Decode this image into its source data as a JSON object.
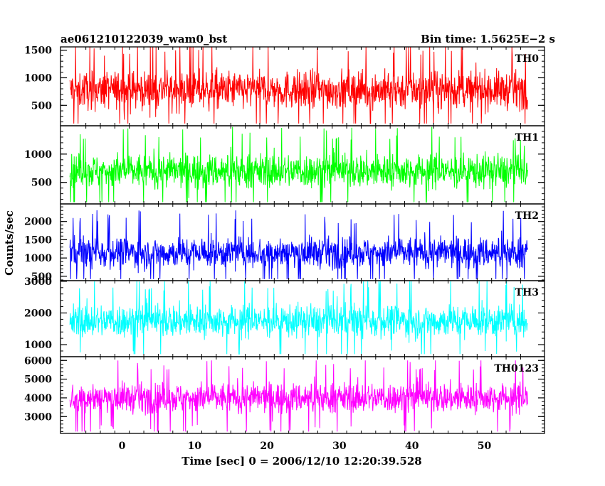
{
  "header": {
    "left_title": "ae061210122039_wam0_bst",
    "right_title": "Bin time: 1.5625E−2 s"
  },
  "chart_data": {
    "type": "line",
    "title": "ae061210122039_wam0_bst",
    "xlabel": "Time [sec] 0 = 2006/12/10 12:20:39.528",
    "ylabel": "Counts/sec",
    "xlim": [
      -8.5,
      58.3
    ],
    "x_ticks": [
      0,
      10,
      20,
      30,
      40,
      50
    ],
    "x_tick_labels": [
      "0",
      "10",
      "20",
      "30",
      "40",
      "50"
    ],
    "grid": false,
    "panels": [
      {
        "name": "TH0",
        "color": "#ff0000",
        "ylim": [
          130,
          1560
        ],
        "y_ticks": [
          500,
          1000,
          1500
        ],
        "y_tick_labels": [
          "500",
          "1000",
          "1500"
        ],
        "x_range": [
          -7.2,
          56.0
        ],
        "mean": 780,
        "spread": 340,
        "min": 170,
        "max": 1560
      },
      {
        "name": "TH1",
        "color": "#00ff00",
        "ylim": [
          120,
          1500
        ],
        "y_ticks": [
          500,
          1000
        ],
        "y_tick_labels": [
          "500",
          "1000"
        ],
        "x_range": [
          -7.2,
          56.0
        ],
        "mean": 700,
        "spread": 300,
        "min": 150,
        "max": 1480
      },
      {
        "name": "TH2",
        "color": "#0000ff",
        "ylim": [
          380,
          2480
        ],
        "y_ticks": [
          500,
          1000,
          1500,
          2000
        ],
        "y_tick_labels": [
          "500",
          "1000",
          "1500",
          "2000"
        ],
        "x_range": [
          -7.2,
          56.0
        ],
        "mean": 1150,
        "spread": 420,
        "min": 420,
        "max": 2380
      },
      {
        "name": "TH3",
        "color": "#00ffff",
        "ylim": [
          620,
          3020
        ],
        "y_ticks": [
          1000,
          2000,
          3000
        ],
        "y_tick_labels": [
          "1000",
          "2000",
          "3000"
        ],
        "x_range": [
          -7.2,
          56.0
        ],
        "mean": 1750,
        "spread": 520,
        "min": 700,
        "max": 3000
      },
      {
        "name": "TH0123",
        "color": "#ff00ff",
        "ylim": [
          2100,
          6200
        ],
        "y_ticks": [
          3000,
          4000,
          5000,
          6000
        ],
        "y_tick_labels": [
          "3000",
          "4000",
          "5000",
          "6000"
        ],
        "x_range": [
          -7.2,
          56.0
        ],
        "mean": 4000,
        "spread": 800,
        "min": 2200,
        "max": 6000
      }
    ]
  }
}
